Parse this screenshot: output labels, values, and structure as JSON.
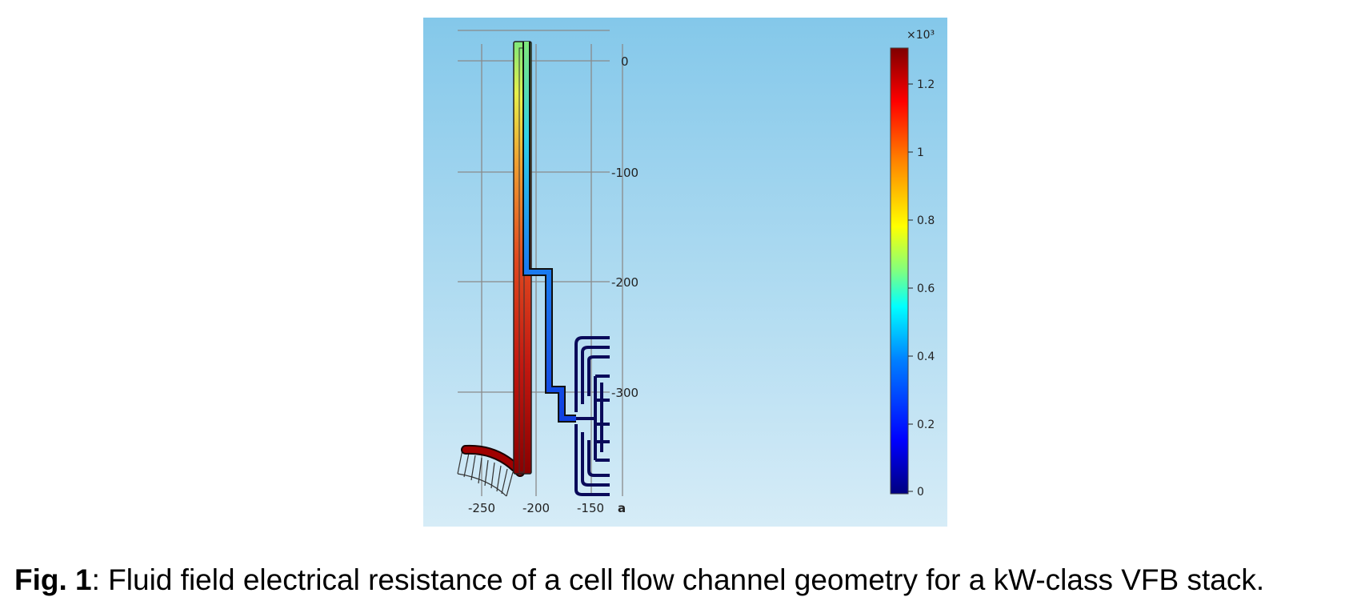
{
  "figure": {
    "background_gradient": [
      "#84c8ea",
      "#d6ecf7"
    ],
    "x_ticks": [
      "-250",
      "-200",
      "-150"
    ],
    "x_axis_label_fragment": "a",
    "y_ticks": [
      "0",
      "-100",
      "-200",
      "-300"
    ],
    "colorbar": {
      "exponent_label": "×10³",
      "ticks": [
        "1.2",
        "1",
        "0.8",
        "0.6",
        "0.4",
        "0.2",
        "0"
      ],
      "colors": [
        "#00007f",
        "#0000ff",
        "#0080ff",
        "#00ffff",
        "#80ff80",
        "#ffff00",
        "#ff8000",
        "#ff0000",
        "#7f0000"
      ]
    }
  },
  "caption": {
    "label": "Fig. 1",
    "text": ": Fluid field electrical resistance of a cell flow channel geometry for a kW-class VFB stack."
  }
}
